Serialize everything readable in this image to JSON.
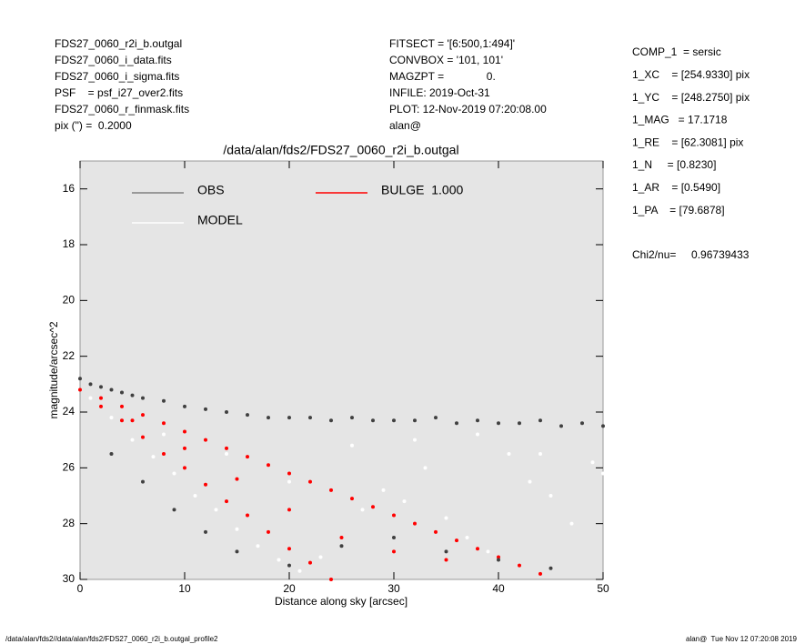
{
  "header_left": [
    "FDS27_0060_r2i_b.outgal",
    "FDS27_0060_i_data.fits",
    "FDS27_0060_i_sigma.fits",
    "PSF    = psf_i27_over2.fits",
    "FDS27_0060_r_finmask.fits",
    "pix (\") =  0.2000"
  ],
  "header_middle": [
    "FITSECT = '[6:500,1:494]'",
    "CONVBOX = '101, 101'",
    "MAGZPT =              0.",
    "INFILE: 2019-Oct-31",
    "PLOT: 12-Nov-2019 07:20:08.00",
    "alan@"
  ],
  "params": [
    "COMP_1  = sersic",
    "1_XC    = [254.9330] pix",
    "1_YC    = [248.2750] pix",
    "1_MAG   = 17.1718",
    "1_RE    = [62.3081] pix",
    "1_N     = [0.8230]",
    "1_AR    = [0.5490]",
    "1_PA    = [79.6878]"
  ],
  "chi2": "Chi2/nu=     0.96739433",
  "footer_left": "/data/alan/fds2//data/alan/fds2/FDS27_0060_r2i_b.outgal_profile2",
  "footer_right": "alan@  Tue Nov 12 07:20:08 2019",
  "chart_data": {
    "type": "scatter",
    "title": "/data/alan/fds2/FDS27_0060_r2i_b.outgal",
    "x_label": "Distance along sky [arcsec]",
    "y_label": "magnitude/arcsec^2",
    "xlim": [
      0,
      50
    ],
    "xticks": [
      0,
      10,
      20,
      30,
      40,
      50
    ],
    "ylim": [
      15,
      30
    ],
    "yticks": [
      16,
      18,
      20,
      22,
      24,
      26,
      28,
      30
    ],
    "y_inverted": true,
    "series": [
      {
        "name": "OBS",
        "color": "#404040",
        "legend_color": "#808080",
        "x": [
          0,
          1,
          2,
          3,
          4,
          5,
          6,
          8,
          10,
          12,
          14,
          16,
          18,
          20,
          22,
          24,
          26,
          28,
          30,
          32,
          34,
          36,
          38,
          40,
          42,
          44,
          46,
          48,
          50,
          3,
          6,
          9,
          12,
          15,
          20,
          25,
          30,
          35,
          40,
          45
        ],
        "values": [
          22.8,
          23.0,
          23.1,
          23.2,
          23.3,
          23.4,
          23.5,
          23.6,
          23.8,
          23.9,
          24.0,
          24.1,
          24.2,
          24.2,
          24.2,
          24.3,
          24.2,
          24.3,
          24.3,
          24.3,
          24.2,
          24.4,
          24.3,
          24.4,
          24.4,
          24.3,
          24.5,
          24.4,
          24.5,
          25.5,
          26.5,
          27.5,
          28.3,
          29.0,
          29.5,
          28.8,
          28.5,
          29.0,
          29.3,
          29.6
        ]
      },
      {
        "name": "MODEL",
        "color": "#ffffff",
        "legend_color": "#ffffff",
        "x": [
          1,
          3,
          5,
          7,
          9,
          11,
          13,
          15,
          17,
          19,
          21,
          23,
          25,
          27,
          29,
          31,
          33,
          35,
          37,
          39,
          41,
          43,
          45,
          47,
          49,
          2,
          8,
          14,
          20,
          26,
          32,
          38,
          44,
          50
        ],
        "values": [
          23.5,
          24.2,
          25.0,
          25.6,
          26.2,
          27.0,
          27.5,
          28.2,
          28.8,
          29.3,
          29.7,
          29.2,
          28.5,
          27.5,
          26.8,
          27.2,
          26.0,
          27.8,
          28.5,
          29.0,
          25.5,
          26.5,
          27.0,
          28.0,
          25.8,
          23.8,
          24.8,
          25.5,
          26.5,
          25.2,
          25.0,
          24.8,
          25.5,
          26.2
        ]
      },
      {
        "name": "BULGE  1.000",
        "color": "#ff0000",
        "legend_color": "#ff0000",
        "x": [
          0,
          2,
          4,
          6,
          8,
          10,
          12,
          14,
          16,
          18,
          20,
          22,
          24,
          26,
          28,
          30,
          32,
          34,
          36,
          38,
          40,
          42,
          44,
          2,
          4,
          6,
          8,
          10,
          12,
          14,
          16,
          18,
          20,
          22,
          24,
          5,
          10,
          15,
          20,
          25,
          30,
          35
        ],
        "values": [
          23.2,
          23.5,
          23.8,
          24.1,
          24.4,
          24.7,
          25.0,
          25.3,
          25.6,
          25.9,
          26.2,
          26.5,
          26.8,
          27.1,
          27.4,
          27.7,
          28.0,
          28.3,
          28.6,
          28.9,
          29.2,
          29.5,
          29.8,
          23.8,
          24.3,
          24.9,
          25.5,
          26.0,
          26.6,
          27.2,
          27.7,
          28.3,
          28.9,
          29.4,
          30.0,
          24.3,
          25.3,
          26.4,
          27.5,
          28.5,
          29.0,
          29.3
        ]
      }
    ]
  }
}
